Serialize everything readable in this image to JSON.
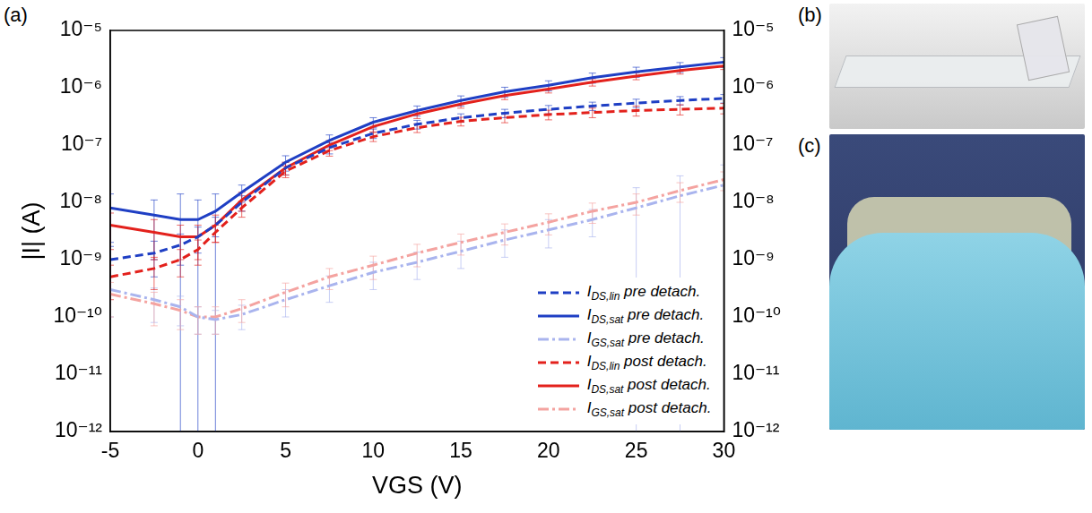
{
  "chart_data": {
    "type": "line",
    "panel": "(a)",
    "x_label": "VGS (V)",
    "y_label": "|I| (A)",
    "log": "y",
    "grid": false,
    "legend": "lower right",
    "xlim": [
      -5,
      30
    ],
    "xticks": [
      -5,
      0,
      5,
      10,
      15,
      20,
      25,
      30
    ],
    "ylim": [
      1e-12,
      1e-05
    ],
    "yticks": [
      {
        "value": 1e-12,
        "label": "10⁻¹²"
      },
      {
        "value": 1e-11,
        "label": "10⁻¹¹"
      },
      {
        "value": 1e-10,
        "label": "10⁻¹⁰"
      },
      {
        "value": 1e-09,
        "label": "10⁻⁹"
      },
      {
        "value": 1e-08,
        "label": "10⁻⁸"
      },
      {
        "value": 1e-07,
        "label": "10⁻⁷"
      },
      {
        "value": 1e-06,
        "label": "10⁻⁶"
      },
      {
        "value": 1e-05,
        "label": "10⁻⁵"
      }
    ],
    "y2lim": [
      1e-12,
      1e-05
    ],
    "y2ticks": [
      {
        "value": 1e-12,
        "label": "10⁻¹²"
      },
      {
        "value": 1e-11,
        "label": "10⁻¹¹"
      },
      {
        "value": 1e-10,
        "label": "10⁻¹⁰"
      },
      {
        "value": 1e-09,
        "label": "10⁻⁹"
      },
      {
        "value": 1e-08,
        "label": "10⁻⁸"
      },
      {
        "value": 1e-07,
        "label": "10⁻⁷"
      },
      {
        "value": 1e-06,
        "label": "10⁻⁶"
      },
      {
        "value": 1e-05,
        "label": "10⁻⁵"
      }
    ],
    "x": [
      -5,
      -2.5,
      -1,
      0,
      1,
      2.5,
      5,
      7.5,
      10,
      12.5,
      15,
      17.5,
      20,
      22.5,
      25,
      27.5,
      30
    ],
    "series": [
      {
        "name": "IDS,lin pre detach.",
        "color": "#1f3fc4",
        "line_style": "dashed",
        "values": [
          1e-09,
          1.3e-09,
          1.8e-09,
          2.5e-09,
          4e-09,
          1e-08,
          4e-08,
          9e-08,
          1.6e-07,
          2.3e-07,
          3e-07,
          3.6e-07,
          4.2e-07,
          4.8e-07,
          5.4e-07,
          6e-07,
          6.5e-07
        ],
        "errors": [
          7e-10,
          8e-10,
          1e-09,
          1.2e-09,
          1.5e-09,
          3e-09,
          1e-08,
          2e-08,
          3e-08,
          4e-08,
          5e-08,
          6e-08,
          7e-08,
          8e-08,
          9e-08,
          1e-07,
          1.1e-07
        ]
      },
      {
        "name": "IDS,sat pre detach.",
        "color": "#1f3fc4",
        "line_style": "solid",
        "values": [
          8e-09,
          6e-09,
          5e-09,
          5e-09,
          7e-09,
          1.5e-08,
          5e-08,
          1.2e-07,
          2.5e-07,
          4e-07,
          6e-07,
          8.5e-07,
          1.1e-06,
          1.5e-06,
          1.9e-06,
          2.3e-06,
          2.8e-06
        ],
        "errors": [
          6e-09,
          5e-09,
          9e-09,
          6e-09,
          7e-09,
          5e-09,
          1.5e-08,
          3e-08,
          5e-08,
          8e-08,
          1.2e-07,
          1.7e-07,
          2.2e-07,
          3e-07,
          3.8e-07,
          4.5e-07,
          5.5e-07
        ]
      },
      {
        "name": "IGS,sat pre detach.",
        "color": "#a9b4ee",
        "line_style": "dashdot",
        "values": [
          3e-10,
          2e-10,
          1.5e-10,
          1e-10,
          9e-11,
          1.1e-10,
          2e-10,
          3.5e-10,
          6e-10,
          9e-10,
          1.4e-09,
          2.2e-09,
          3.3e-09,
          5e-09,
          8e-09,
          1.3e-08,
          2e-08
        ],
        "errors": [
          2e-10,
          1.2e-10,
          8e-11,
          5e-11,
          4e-11,
          5e-11,
          1e-10,
          1.7e-10,
          3e-10,
          4.5e-10,
          7e-10,
          1.1e-09,
          1.7e-09,
          2.5e-09,
          1e-08,
          1.6e-08,
          2.5e-08
        ]
      },
      {
        "name": "IDS,lin post detach.",
        "color": "#e3211c",
        "line_style": "dashed",
        "values": [
          5e-10,
          7e-10,
          1e-09,
          1.5e-09,
          3e-09,
          8e-09,
          3.5e-08,
          8e-08,
          1.4e-07,
          2e-07,
          2.6e-07,
          3e-07,
          3.4e-07,
          3.7e-07,
          4e-07,
          4.2e-07,
          4.4e-07
        ],
        "errors": [
          3e-10,
          4e-10,
          5e-10,
          7e-10,
          1e-09,
          2.5e-09,
          8e-09,
          1.6e-08,
          2.5e-08,
          3.5e-08,
          4.5e-08,
          5.5e-08,
          6.5e-08,
          7e-08,
          8e-08,
          8.5e-08,
          9e-08
        ]
      },
      {
        "name": "IDS,sat post detach.",
        "color": "#e3211c",
        "line_style": "solid",
        "values": [
          4e-09,
          3e-09,
          2.5e-09,
          2.5e-09,
          4e-09,
          1.1e-08,
          4e-08,
          1e-07,
          2.1e-07,
          3.5e-07,
          5.2e-07,
          7.3e-07,
          9.5e-07,
          1.25e-06,
          1.6e-06,
          2e-06,
          2.4e-06
        ],
        "errors": [
          2.5e-09,
          2e-09,
          1.5e-09,
          1.5e-09,
          2e-09,
          4e-09,
          1e-08,
          2e-08,
          4e-08,
          6e-08,
          8e-08,
          1.1e-07,
          1.4e-07,
          1.8e-07,
          2.2e-07,
          2.7e-07,
          3.2e-07
        ]
      },
      {
        "name": "IGS,sat post detach.",
        "color": "#f4a3a0",
        "line_style": "dashdot",
        "values": [
          2.5e-10,
          1.7e-10,
          1.3e-10,
          1e-10,
          1e-10,
          1.4e-10,
          2.7e-10,
          5e-10,
          8e-10,
          1.3e-09,
          2e-09,
          3e-09,
          4.5e-09,
          7e-09,
          1e-08,
          1.6e-08,
          2.5e-08
        ],
        "errors": [
          1.5e-10,
          1e-10,
          7e-11,
          5e-11,
          5e-11,
          6e-11,
          1.2e-10,
          2e-10,
          3.5e-10,
          5.5e-10,
          8e-10,
          1.2e-09,
          1.8e-09,
          2.7e-09,
          4e-09,
          6e-09,
          9e-09
        ]
      }
    ]
  },
  "images": [
    {
      "label": "(b)"
    },
    {
      "label": "(c)"
    }
  ]
}
